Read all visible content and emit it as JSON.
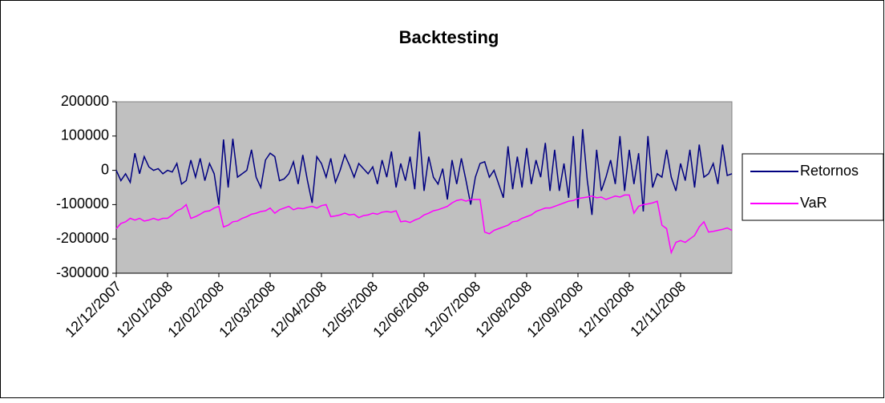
{
  "chart_data": {
    "type": "line",
    "title": "Backtesting",
    "categories": [
      "12/12/2007",
      null,
      null,
      null,
      null,
      null,
      null,
      null,
      null,
      null,
      null,
      "12/01/2008",
      null,
      null,
      null,
      null,
      null,
      null,
      null,
      null,
      null,
      null,
      "12/02/2008",
      null,
      null,
      null,
      null,
      null,
      null,
      null,
      null,
      null,
      null,
      "12/03/2008",
      null,
      null,
      null,
      null,
      null,
      null,
      null,
      null,
      null,
      null,
      "12/04/2008",
      null,
      null,
      null,
      null,
      null,
      null,
      null,
      null,
      null,
      null,
      "12/05/2008",
      null,
      null,
      null,
      null,
      null,
      null,
      null,
      null,
      null,
      null,
      "12/06/2008",
      null,
      null,
      null,
      null,
      null,
      null,
      null,
      null,
      null,
      null,
      "12/07/2008",
      null,
      null,
      null,
      null,
      null,
      null,
      null,
      null,
      null,
      null,
      "12/08/2008",
      null,
      null,
      null,
      null,
      null,
      null,
      null,
      null,
      null,
      null,
      "12/09/2008",
      null,
      null,
      null,
      null,
      null,
      null,
      null,
      null,
      null,
      null,
      "12/10/2008",
      null,
      null,
      null,
      null,
      null,
      null,
      null,
      null,
      null,
      null,
      "12/11/2008",
      null,
      null,
      null,
      null,
      null,
      null,
      null,
      null,
      null,
      null,
      null
    ],
    "series": [
      {
        "name": "Retornos",
        "color": "#000080",
        "values": [
          0,
          -30000,
          -10000,
          -35000,
          50000,
          -10000,
          40000,
          10000,
          0,
          5000,
          -10000,
          0,
          -5000,
          20000,
          -40000,
          -30000,
          30000,
          -20000,
          35000,
          -30000,
          20000,
          -10000,
          -100000,
          90000,
          -50000,
          92000,
          -20000,
          -10000,
          0,
          60000,
          -20000,
          -50000,
          30000,
          50000,
          40000,
          -30000,
          -25000,
          -10000,
          25000,
          -40000,
          45000,
          -30000,
          -95000,
          40000,
          20000,
          -20000,
          35000,
          -35000,
          0,
          45000,
          15000,
          -20000,
          20000,
          5000,
          -10000,
          10000,
          -40000,
          30000,
          -20000,
          55000,
          -50000,
          20000,
          -30000,
          40000,
          -55000,
          113000,
          -60000,
          40000,
          -20000,
          -40000,
          5000,
          -85000,
          30000,
          -40000,
          35000,
          -30000,
          -100000,
          -20000,
          20000,
          25000,
          -20000,
          0,
          -40000,
          -80000,
          70000,
          -55000,
          40000,
          -50000,
          65000,
          -40000,
          30000,
          -20000,
          80000,
          -60000,
          60000,
          -60000,
          20000,
          -80000,
          100000,
          -110000,
          120000,
          -30000,
          -130000,
          60000,
          -60000,
          -20000,
          30000,
          -40000,
          100000,
          -60000,
          60000,
          -40000,
          50000,
          -120000,
          100000,
          -50000,
          -10000,
          -20000,
          60000,
          -20000,
          -60000,
          20000,
          -30000,
          60000,
          -50000,
          75000,
          -20000,
          -10000,
          20000,
          -40000,
          75000,
          -15000,
          -10000
        ]
      },
      {
        "name": "VaR",
        "color": "#ff00ff",
        "values": [
          -170000,
          -155000,
          -150000,
          -140000,
          -145000,
          -140000,
          -148000,
          -145000,
          -140000,
          -145000,
          -140000,
          -140000,
          -130000,
          -118000,
          -112000,
          -100000,
          -140000,
          -135000,
          -128000,
          -120000,
          -118000,
          -110000,
          -105000,
          -165000,
          -160000,
          -150000,
          -148000,
          -140000,
          -135000,
          -128000,
          -125000,
          -120000,
          -118000,
          -110000,
          -125000,
          -115000,
          -110000,
          -105000,
          -115000,
          -110000,
          -112000,
          -108000,
          -105000,
          -110000,
          -103000,
          -100000,
          -135000,
          -133000,
          -130000,
          -125000,
          -130000,
          -128000,
          -138000,
          -132000,
          -130000,
          -125000,
          -128000,
          -122000,
          -120000,
          -122000,
          -118000,
          -150000,
          -148000,
          -152000,
          -145000,
          -140000,
          -130000,
          -125000,
          -118000,
          -115000,
          -110000,
          -105000,
          -95000,
          -88000,
          -85000,
          -90000,
          -85000,
          -85000,
          -85000,
          -180000,
          -185000,
          -175000,
          -170000,
          -165000,
          -160000,
          -150000,
          -148000,
          -140000,
          -135000,
          -130000,
          -120000,
          -115000,
          -110000,
          -110000,
          -105000,
          -100000,
          -95000,
          -90000,
          -88000,
          -82000,
          -80000,
          -78000,
          -75000,
          -80000,
          -78000,
          -85000,
          -80000,
          -75000,
          -78000,
          -72000,
          -72000,
          -125000,
          -105000,
          -100000,
          -98000,
          -95000,
          -90000,
          -160000,
          -170000,
          -240000,
          -210000,
          -205000,
          -210000,
          -200000,
          -190000,
          -165000,
          -150000,
          -180000,
          -178000,
          -175000,
          -172000,
          -168000,
          -175000
        ]
      }
    ],
    "ylim": [
      -300000,
      200000
    ],
    "yticks": [
      -300000,
      -200000,
      -100000,
      0,
      100000,
      200000
    ],
    "grid": false,
    "legend": "right",
    "plot_background": "#c0c0c0"
  }
}
